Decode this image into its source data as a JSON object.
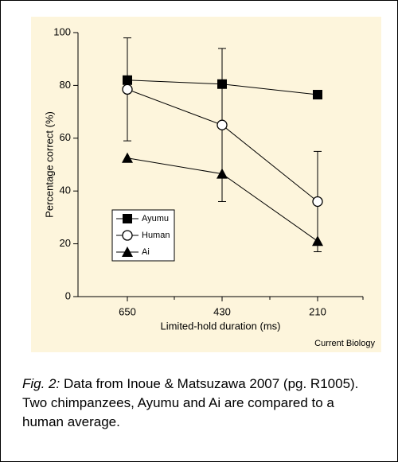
{
  "chart_data": {
    "type": "line",
    "xlabel": "Limited-hold duration (ms)",
    "ylabel": "Percentage correct (%)",
    "credit": "Current Biology",
    "categories": [
      "650",
      "430",
      "210"
    ],
    "series": [
      {
        "name": "Ayumu",
        "color": "#000000",
        "marker": "square",
        "values": [
          82,
          80.5,
          76.5
        ]
      },
      {
        "name": "Human",
        "color": "#000000",
        "marker": "circle",
        "values": [
          78.5,
          65,
          36
        ],
        "error_bars": [
          {
            "low": 59,
            "high": 98
          },
          {
            "low": 36,
            "high": 94
          },
          {
            "low": 17,
            "high": 55
          }
        ]
      },
      {
        "name": "Ai",
        "color": "#000000",
        "marker": "triangle",
        "values": [
          52.5,
          46.5,
          21
        ]
      }
    ],
    "ylim": [
      0,
      100
    ],
    "yticks": [
      0,
      20,
      40,
      60,
      80,
      100
    ],
    "legend": "lower left"
  },
  "caption": {
    "label": "Fig. 2:",
    "text": "Data from Inoue & Matsuzawa 2007 (pg. R1005). Two chimpanzees, Ayumu and Ai are compared to a human average."
  }
}
